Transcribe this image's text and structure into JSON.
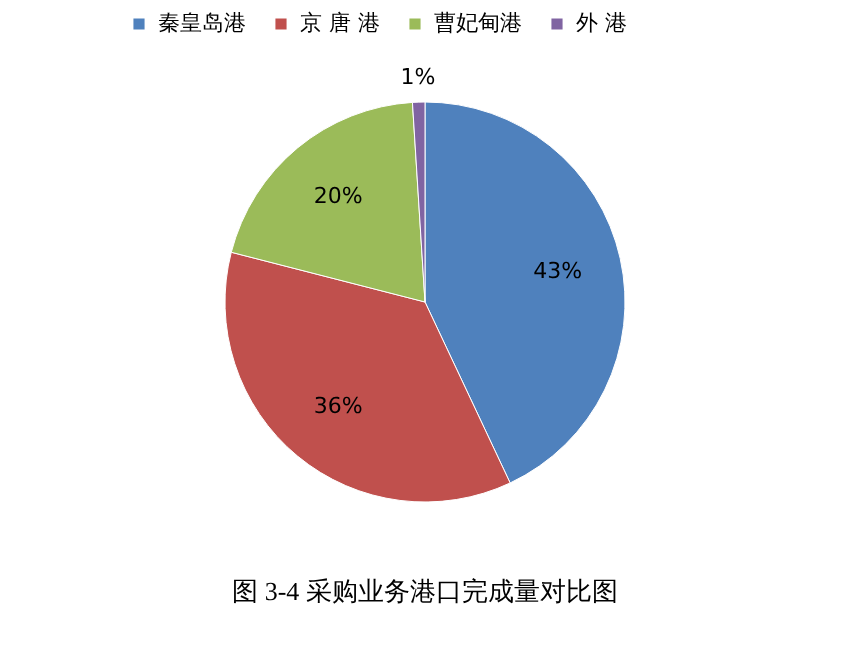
{
  "chart_data": {
    "type": "pie",
    "title": "图 3-4  采购业务港口完成量对比图",
    "categories": [
      "秦皇岛港",
      "京 唐 港",
      "曹妃甸港",
      "外  港"
    ],
    "values": [
      43,
      36,
      20,
      1
    ],
    "colors": [
      "#4f81bd",
      "#c0504d",
      "#9bbb59",
      "#8064a2"
    ],
    "value_labels": [
      "43%",
      "36%",
      "20%",
      "1%"
    ],
    "legend": "top"
  }
}
